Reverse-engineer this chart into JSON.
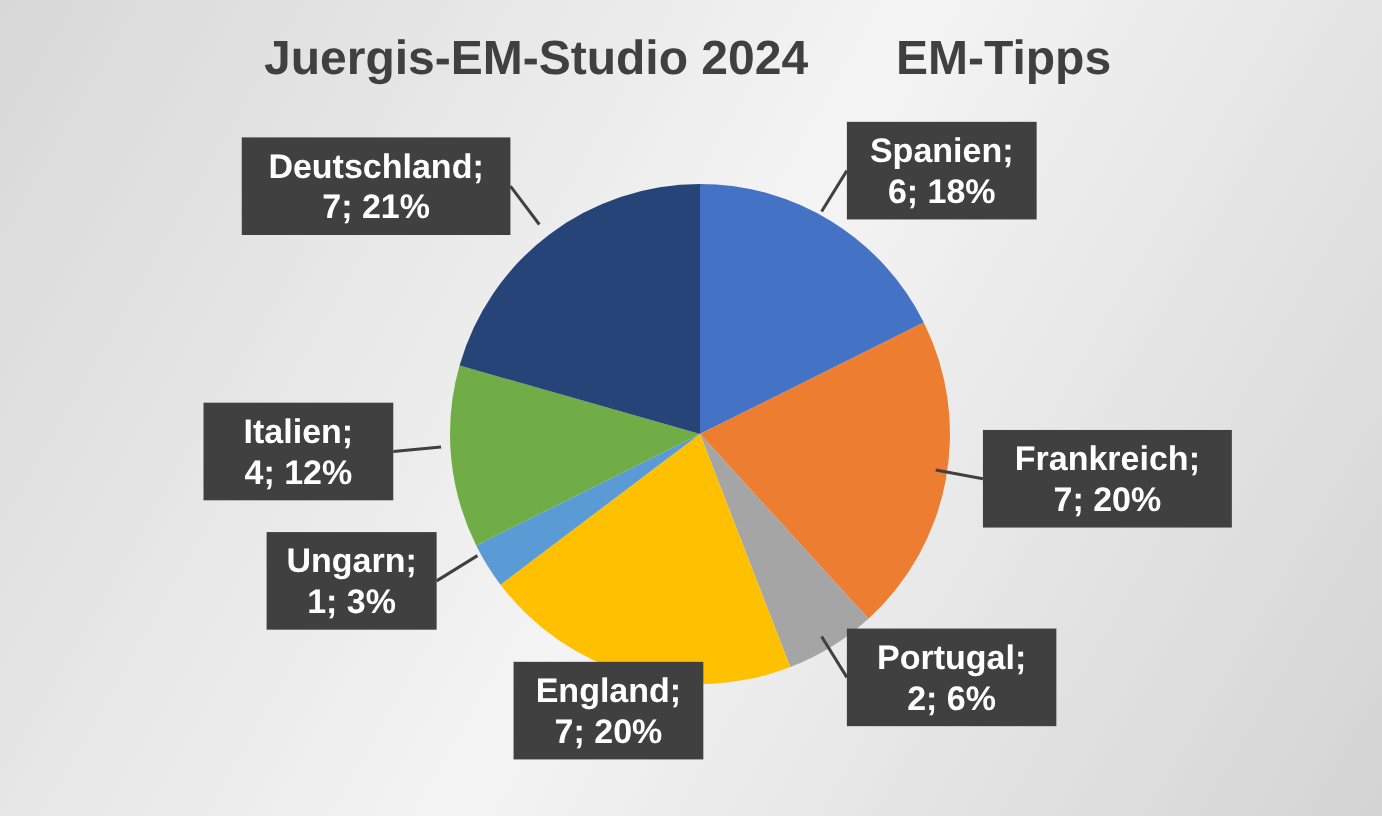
{
  "chart_data": {
    "type": "pie",
    "title": "Juergis-EM-Studio 2024",
    "subtitle": "EM-Tipps",
    "categories": [
      "Spanien",
      "Frankreich",
      "Portugal",
      "England",
      "Ungarn",
      "Italien",
      "Deutschland"
    ],
    "values": [
      6,
      7,
      2,
      7,
      1,
      4,
      7
    ],
    "colors": [
      "#4472c4",
      "#ed7d31",
      "#a5a5a5",
      "#ffc000",
      "#5b9bd5",
      "#70ad47",
      "#264478"
    ],
    "value_labels": [
      "; 6; 18%",
      "; 7; 20%",
      "; 2; 6%",
      "; 7; 20%",
      "; 1; 3%",
      "; 4; 12%",
      "; 7; 21%"
    ]
  }
}
